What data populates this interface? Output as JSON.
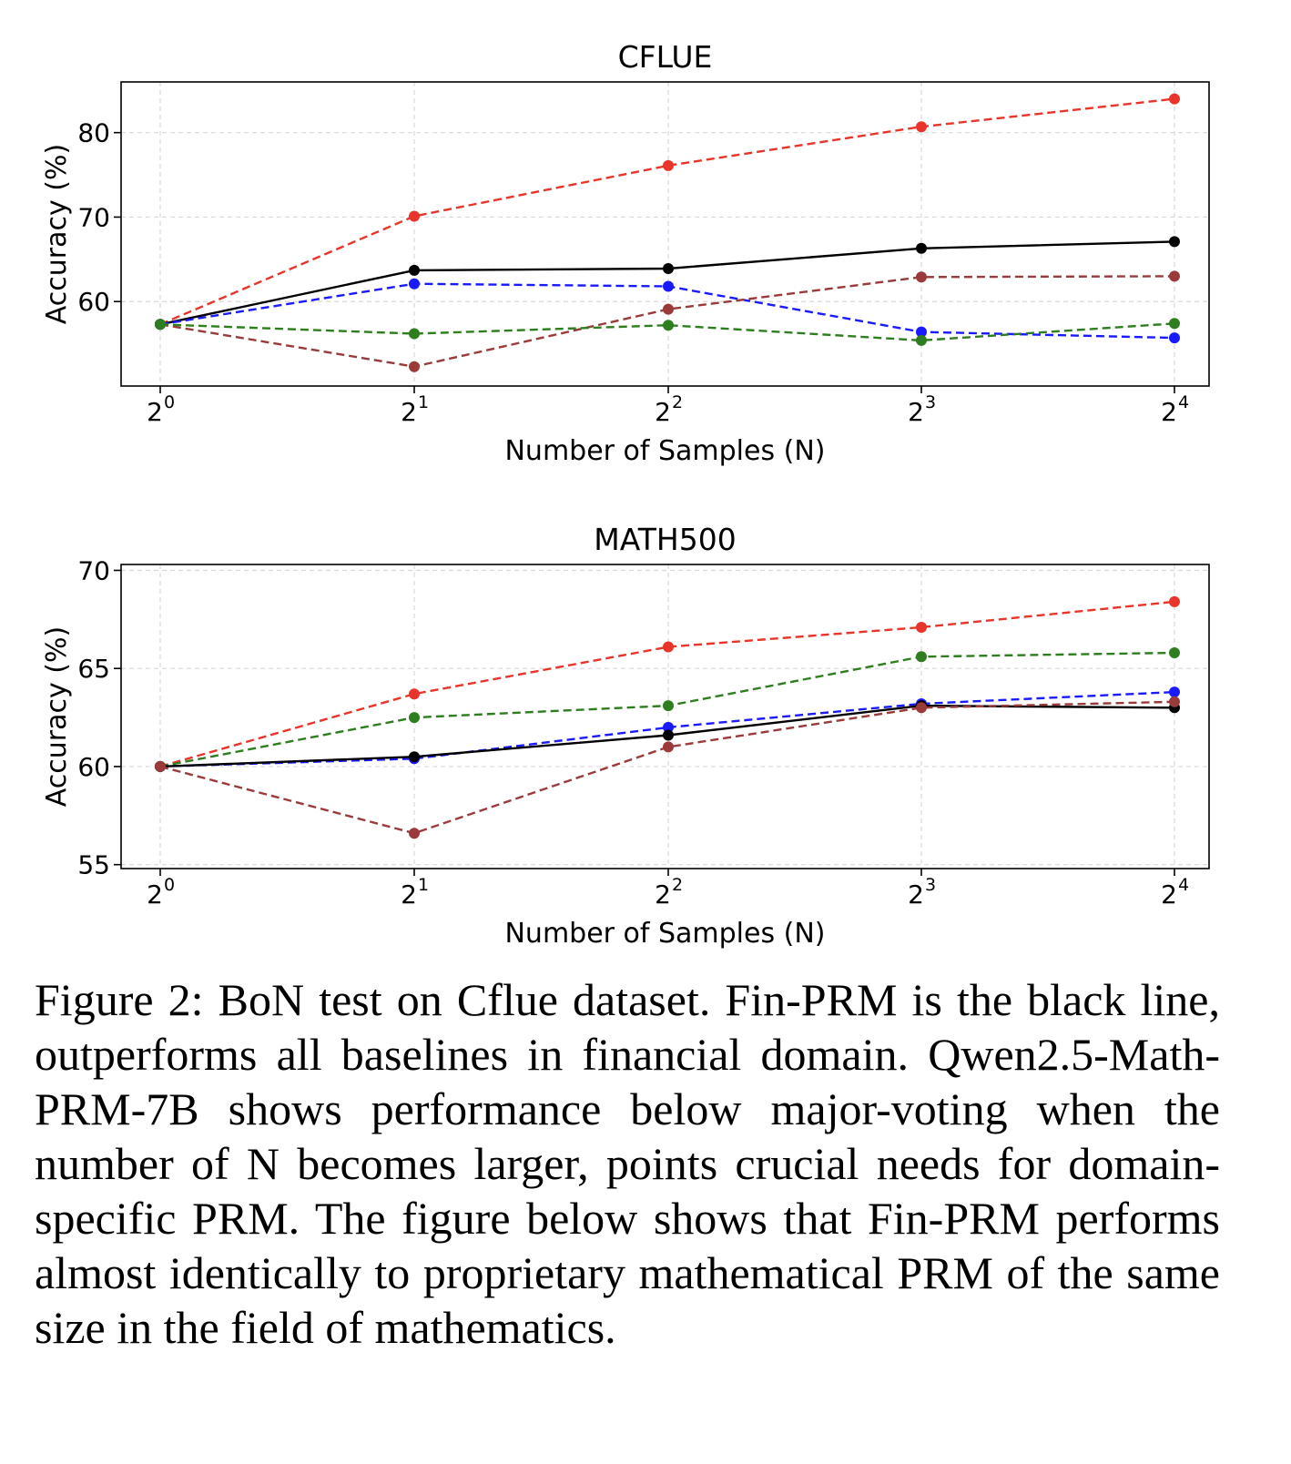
{
  "chart_data": [
    {
      "type": "line",
      "title": "CFLUE",
      "xlabel": "Number of Samples (N)",
      "ylabel": "Accuracy (%)",
      "x": [
        "2^0",
        "2^1",
        "2^2",
        "2^3",
        "2^4"
      ],
      "x_tick_labels": [
        {
          "base": "2",
          "exp": "0"
        },
        {
          "base": "2",
          "exp": "1"
        },
        {
          "base": "2",
          "exp": "2"
        },
        {
          "base": "2",
          "exp": "3"
        },
        {
          "base": "2",
          "exp": "4"
        }
      ],
      "x_scale": "log2",
      "y_ticks": [
        60,
        70,
        80
      ],
      "ylim": [
        50,
        86
      ],
      "grid": true,
      "series": [
        {
          "color": "#e8342a",
          "dash": true,
          "values": [
            57.3,
            70.1,
            76.1,
            80.7,
            84.0
          ]
        },
        {
          "color": "#000000",
          "dash": false,
          "values": [
            57.3,
            63.7,
            63.9,
            66.3,
            67.1
          ]
        },
        {
          "color": "#1a1aff",
          "dash": true,
          "values": [
            57.3,
            62.1,
            61.8,
            56.4,
            55.7
          ]
        },
        {
          "color": "#9a3a3a",
          "dash": true,
          "values": [
            57.3,
            52.3,
            59.1,
            62.9,
            63.0
          ]
        },
        {
          "color": "#2e7d1e",
          "dash": true,
          "values": [
            57.3,
            56.2,
            57.2,
            55.4,
            57.4
          ]
        }
      ]
    },
    {
      "type": "line",
      "title": "MATH500",
      "xlabel": "Number of Samples (N)",
      "ylabel": "Accuracy (%)",
      "x": [
        "2^0",
        "2^1",
        "2^2",
        "2^3",
        "2^4"
      ],
      "x_tick_labels": [
        {
          "base": "2",
          "exp": "0"
        },
        {
          "base": "2",
          "exp": "1"
        },
        {
          "base": "2",
          "exp": "2"
        },
        {
          "base": "2",
          "exp": "3"
        },
        {
          "base": "2",
          "exp": "4"
        }
      ],
      "x_scale": "log2",
      "y_ticks": [
        55,
        60,
        65,
        70
      ],
      "ylim": [
        54.8,
        70.3
      ],
      "grid": true,
      "series": [
        {
          "color": "#e8342a",
          "dash": true,
          "values": [
            60.0,
            63.7,
            66.1,
            67.1,
            68.4
          ]
        },
        {
          "color": "#2e7d1e",
          "dash": true,
          "values": [
            60.0,
            62.5,
            63.1,
            65.6,
            65.8
          ]
        },
        {
          "color": "#1a1aff",
          "dash": true,
          "values": [
            60.0,
            60.4,
            62.0,
            63.2,
            63.8
          ]
        },
        {
          "color": "#000000",
          "dash": false,
          "values": [
            60.0,
            60.5,
            61.6,
            63.1,
            63.0
          ]
        },
        {
          "color": "#9a3a3a",
          "dash": true,
          "values": [
            60.0,
            56.6,
            61.0,
            63.0,
            63.3
          ]
        }
      ]
    }
  ],
  "caption": "Figure 2: BoN test on Cflue dataset. Fin-PRM is the black line, outperforms all baselines in financial domain. Qwen2.5-Math-PRM-7B shows performance below major-voting when the number of N becomes larger, points crucial needs for domain-specific PRM. The figure below shows that Fin-PRM performs almost identically to proprietary mathematical PRM of the same size in the field of mathematics."
}
